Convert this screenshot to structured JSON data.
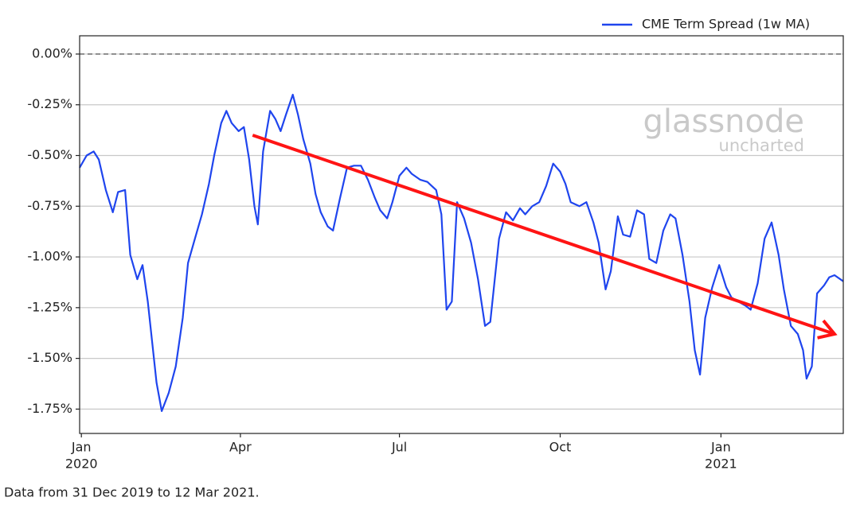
{
  "chart_data": {
    "type": "line",
    "legend": "upper right",
    "grid": true,
    "reference_line": 0,
    "footnote": "Data from 31 Dec 2019 to 12 Mar 2021.",
    "watermark": {
      "brand": "glassnode",
      "sub": "uncharted"
    },
    "xlim": [
      "2019-12-31",
      "2021-03-12"
    ],
    "ylim": [
      -1.87,
      0.09
    ],
    "xticks": [
      {
        "value": "2020-01-01",
        "label": "Jan",
        "year": "2020"
      },
      {
        "value": "2020-04-01",
        "label": "Apr"
      },
      {
        "value": "2020-07-01",
        "label": "Jul"
      },
      {
        "value": "2020-10-01",
        "label": "Oct"
      },
      {
        "value": "2021-01-01",
        "label": "Jan",
        "year": "2021"
      }
    ],
    "yticks": [
      {
        "value": 0,
        "label": "0.00%"
      },
      {
        "value": -0.25,
        "label": "-0.25%"
      },
      {
        "value": -0.5,
        "label": "-0.50%"
      },
      {
        "value": -0.75,
        "label": "-0.75%"
      },
      {
        "value": -1,
        "label": "-1.00%"
      },
      {
        "value": -1.25,
        "label": "-1.25%"
      },
      {
        "value": -1.5,
        "label": "-1.50%"
      },
      {
        "value": -1.75,
        "label": "-1.75%"
      }
    ],
    "trend_arrow": {
      "x": [
        "2020-04-08",
        "2021-03-07"
      ],
      "y": [
        -0.4,
        -1.38
      ],
      "color": "#ff1414"
    },
    "x": [
      "2019-12-31",
      "2020-01-04",
      "2020-01-08",
      "2020-01-11",
      "2020-01-15",
      "2020-01-19",
      "2020-01-22",
      "2020-01-26",
      "2020-01-29",
      "2020-02-02",
      "2020-02-05",
      "2020-02-08",
      "2020-02-13",
      "2020-02-16",
      "2020-02-20",
      "2020-02-24",
      "2020-02-28",
      "2020-03-02",
      "2020-03-06",
      "2020-03-10",
      "2020-03-14",
      "2020-03-17",
      "2020-03-21",
      "2020-03-24",
      "2020-03-27",
      "2020-03-31",
      "2020-04-03",
      "2020-04-06",
      "2020-04-09",
      "2020-04-11",
      "2020-04-14",
      "2020-04-18",
      "2020-04-21",
      "2020-04-24",
      "2020-04-27",
      "2020-05-01",
      "2020-05-04",
      "2020-05-07",
      "2020-05-11",
      "2020-05-14",
      "2020-05-17",
      "2020-05-21",
      "2020-05-24",
      "2020-05-28",
      "2020-06-01",
      "2020-06-05",
      "2020-06-09",
      "2020-06-13",
      "2020-06-17",
      "2020-06-20",
      "2020-06-24",
      "2020-06-27",
      "2020-07-01",
      "2020-07-05",
      "2020-07-08",
      "2020-07-13",
      "2020-07-17",
      "2020-07-22",
      "2020-07-25",
      "2020-07-28",
      "2020-07-31",
      "2020-08-03",
      "2020-08-07",
      "2020-08-11",
      "2020-08-15",
      "2020-08-19",
      "2020-08-22",
      "2020-08-27",
      "2020-08-31",
      "2020-09-04",
      "2020-09-08",
      "2020-09-11",
      "2020-09-15",
      "2020-09-19",
      "2020-09-23",
      "2020-09-27",
      "2020-10-01",
      "2020-10-04",
      "2020-10-07",
      "2020-10-12",
      "2020-10-16",
      "2020-10-20",
      "2020-10-23",
      "2020-10-27",
      "2020-10-30",
      "2020-11-03",
      "2020-11-06",
      "2020-11-10",
      "2020-11-14",
      "2020-11-18",
      "2020-11-21",
      "2020-11-25",
      "2020-11-29",
      "2020-12-03",
      "2020-12-06",
      "2020-12-10",
      "2020-12-14",
      "2020-12-17",
      "2020-12-20",
      "2020-12-23",
      "2020-12-27",
      "2020-12-31",
      "2021-01-04",
      "2021-01-07",
      "2021-01-11",
      "2021-01-15",
      "2021-01-18",
      "2021-01-22",
      "2021-01-26",
      "2021-01-30",
      "2021-02-03",
      "2021-02-06",
      "2021-02-10",
      "2021-02-14",
      "2021-02-17",
      "2021-02-19",
      "2021-02-22",
      "2021-02-25",
      "2021-03-01",
      "2021-03-04",
      "2021-03-07",
      "2021-03-12"
    ],
    "series": [
      {
        "name": "CME Term Spread (1w MA)",
        "color": "#1f45ee",
        "values": [
          -0.56,
          -0.5,
          -0.48,
          -0.52,
          -0.67,
          -0.78,
          -0.68,
          -0.67,
          -0.99,
          -1.11,
          -1.04,
          -1.22,
          -1.62,
          -1.76,
          -1.67,
          -1.54,
          -1.3,
          -1.03,
          -0.91,
          -0.79,
          -0.64,
          -0.5,
          -0.34,
          -0.28,
          -0.34,
          -0.38,
          -0.36,
          -0.52,
          -0.75,
          -0.84,
          -0.48,
          -0.28,
          -0.32,
          -0.38,
          -0.3,
          -0.2,
          -0.3,
          -0.42,
          -0.54,
          -0.69,
          -0.78,
          -0.85,
          -0.87,
          -0.71,
          -0.56,
          -0.55,
          -0.55,
          -0.62,
          -0.71,
          -0.77,
          -0.81,
          -0.73,
          -0.6,
          -0.56,
          -0.59,
          -0.62,
          -0.63,
          -0.67,
          -0.79,
          -1.26,
          -1.22,
          -0.73,
          -0.81,
          -0.93,
          -1.11,
          -1.34,
          -1.32,
          -0.91,
          -0.78,
          -0.82,
          -0.76,
          -0.79,
          -0.75,
          -0.73,
          -0.65,
          -0.54,
          -0.58,
          -0.64,
          -0.73,
          -0.75,
          -0.73,
          -0.83,
          -0.93,
          -1.16,
          -1.07,
          -0.8,
          -0.89,
          -0.9,
          -0.77,
          -0.79,
          -1.01,
          -1.03,
          -0.87,
          -0.79,
          -0.81,
          -0.99,
          -1.22,
          -1.46,
          -1.58,
          -1.3,
          -1.15,
          -1.04,
          -1.15,
          -1.2,
          -1.22,
          -1.24,
          -1.26,
          -1.13,
          -0.91,
          -0.83,
          -0.99,
          -1.16,
          -1.34,
          -1.38,
          -1.46,
          -1.6,
          -1.54,
          -1.18,
          -1.14,
          -1.1,
          -1.09,
          -1.12
        ]
      }
    ]
  }
}
